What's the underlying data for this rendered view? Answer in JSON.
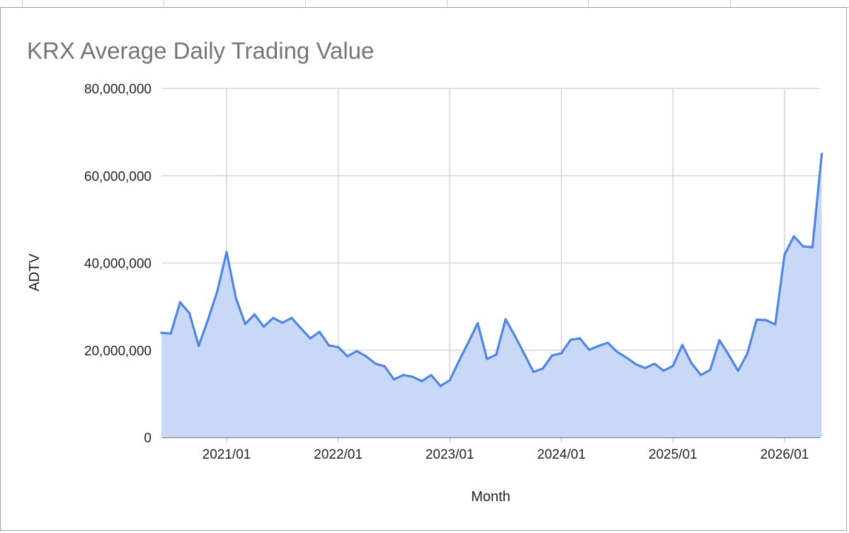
{
  "chart_data": {
    "type": "area",
    "title": "KRX Average Daily Trading Value",
    "xlabel": "Month",
    "ylabel": "ADTV",
    "ylim": [
      0,
      80000000
    ],
    "yticks": [
      0,
      20000000,
      40000000,
      60000000,
      80000000
    ],
    "ytick_labels": [
      "0",
      "20,000,000",
      "40,000,000",
      "60,000,000",
      "80,000,000"
    ],
    "xtick_labels": [
      "2021/01",
      "2022/01",
      "2023/01",
      "2024/01",
      "2025/01",
      "2026/01"
    ],
    "grid": true,
    "line_color": "#4f86e4",
    "fill_color": "#c9d8f7",
    "x": [
      "2020/06",
      "2020/07",
      "2020/08",
      "2020/09",
      "2020/10",
      "2020/11",
      "2020/12",
      "2021/01",
      "2021/02",
      "2021/03",
      "2021/04",
      "2021/05",
      "2021/06",
      "2021/07",
      "2021/08",
      "2021/09",
      "2021/10",
      "2021/11",
      "2021/12",
      "2022/01",
      "2022/02",
      "2022/03",
      "2022/04",
      "2022/05",
      "2022/06",
      "2022/07",
      "2022/08",
      "2022/09",
      "2022/10",
      "2022/11",
      "2022/12",
      "2023/01",
      "2023/02",
      "2023/03",
      "2023/04",
      "2023/05",
      "2023/06",
      "2023/07",
      "2023/08",
      "2023/09",
      "2023/10",
      "2023/11",
      "2023/12",
      "2024/01",
      "2024/02",
      "2024/03",
      "2024/04",
      "2024/05",
      "2024/06",
      "2024/07",
      "2024/08",
      "2024/09",
      "2024/10",
      "2024/11",
      "2024/12",
      "2025/01",
      "2025/02",
      "2025/03",
      "2025/04",
      "2025/05",
      "2025/06",
      "2025/07",
      "2025/08",
      "2025/09",
      "2025/10",
      "2025/11",
      "2025/12",
      "2026/01",
      "2026/02",
      "2026/03",
      "2026/04",
      "2026/05"
    ],
    "series": [
      {
        "values": [
          24000000,
          23800000,
          31000000,
          28500000,
          21000000,
          27000000,
          33500000,
          42500000,
          32000000,
          26000000,
          28200000,
          25400000,
          27400000,
          26300000,
          27400000,
          25000000,
          22700000,
          24200000,
          21100000,
          20700000,
          18600000,
          19800000,
          18600000,
          16900000,
          16300000,
          13300000,
          14300000,
          13900000,
          12900000,
          14300000,
          11800000,
          13100000,
          17600000,
          21800000,
          26200000,
          18000000,
          19000000,
          27100000,
          23300000,
          19200000,
          15000000,
          15800000,
          18800000,
          19300000,
          22400000,
          22700000,
          20100000,
          21000000,
          21700000,
          19600000,
          18300000,
          16800000,
          15900000,
          16900000,
          15300000,
          16400000,
          21200000,
          17000000,
          14300000,
          15500000,
          22300000,
          18900000,
          15300000,
          19200000,
          27000000,
          26900000,
          25900000,
          41900000,
          46100000,
          43800000,
          43600000,
          65000000
        ]
      }
    ]
  }
}
